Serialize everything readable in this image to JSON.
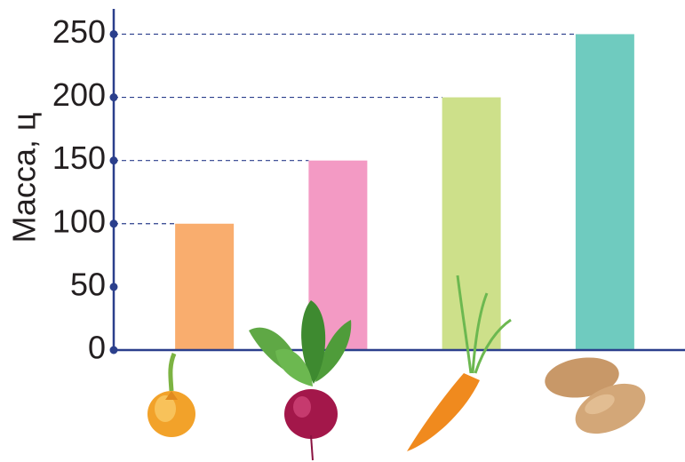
{
  "chart_data": {
    "type": "bar",
    "y_label": "Масса, ц",
    "categories": [
      null,
      null,
      null,
      null
    ],
    "series": [
      {
        "values": [
          100,
          150,
          200,
          250
        ]
      }
    ],
    "colors": [
      "#f9ad6e",
      "#f39ac4",
      "#cde08a",
      "#6fcbbf"
    ],
    "ylim": [
      0,
      270
    ],
    "yticks": [
      0,
      50,
      100,
      150,
      200,
      250
    ],
    "guide_lines": true
  }
}
